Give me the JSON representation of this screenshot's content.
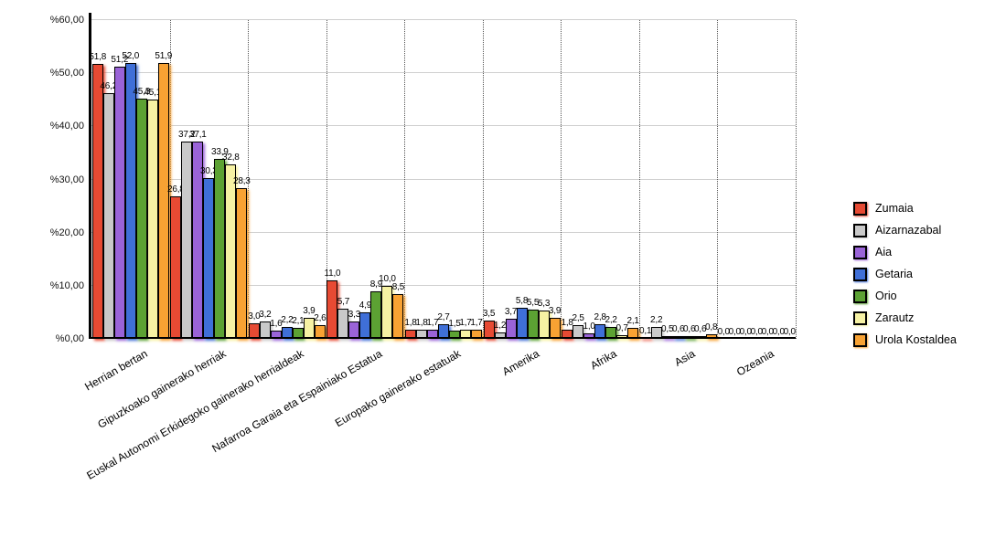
{
  "chart_data": {
    "type": "bar",
    "title": "",
    "categories": [
      "Herrian bertan",
      "Gipuzkoako gainerako herriak",
      "Euskal Autonomi Erkidegoko gainerako herrialdeak",
      "Nafarroa Garaia eta Espainiako Estatua",
      "Europako gainerako estatuak",
      "Amerika",
      "Afrika",
      "Asia",
      "Ozeania"
    ],
    "series": [
      {
        "name": "Zumaia",
        "color": "#e74a33",
        "values": [
          51.8,
          26.8,
          3.0,
          11.0,
          1.8,
          3.5,
          1.8,
          0.1,
          0.0
        ]
      },
      {
        "name": "Aizarnazabal",
        "color": "#c9c9c9",
        "values": [
          46.2,
          37.2,
          3.2,
          5.7,
          1.8,
          1.2,
          2.5,
          2.2,
          0.0
        ]
      },
      {
        "name": "Aia",
        "color": "#9a63d8",
        "values": [
          51.2,
          37.1,
          1.6,
          3.3,
          1.7,
          3.7,
          1.0,
          0.5,
          0.0
        ]
      },
      {
        "name": "Getaria",
        "color": "#3f6fd8",
        "values": [
          52.0,
          30.3,
          2.2,
          4.9,
          2.7,
          5.8,
          2.8,
          0.6,
          0.0
        ]
      },
      {
        "name": "Orio",
        "color": "#5ca233",
        "values": [
          45.3,
          33.9,
          2.1,
          8.9,
          1.5,
          5.5,
          2.2,
          0.6,
          0.0
        ]
      },
      {
        "name": "Zarautz",
        "color": "#f6f2a3",
        "values": [
          45.1,
          32.8,
          3.9,
          10.0,
          1.7,
          5.3,
          0.7,
          0.6,
          0.0
        ]
      },
      {
        "name": "Urola Kostaldea",
        "color": "#f8a233",
        "values": [
          51.9,
          28.3,
          2.6,
          8.5,
          1.7,
          3.9,
          2.1,
          0.8,
          0.0
        ]
      }
    ],
    "ylim": [
      0,
      60
    ],
    "ytick_step": 10,
    "ytick_labels": [
      "%0,00",
      "%10,00",
      "%20,00",
      "%30,00",
      "%40,00",
      "%50,00",
      "%60,00"
    ],
    "value_label_decimal_separator": ",",
    "legend_position": "right",
    "grid": {
      "horizontal_lines": true,
      "vertical_dotted_separators": true
    }
  }
}
